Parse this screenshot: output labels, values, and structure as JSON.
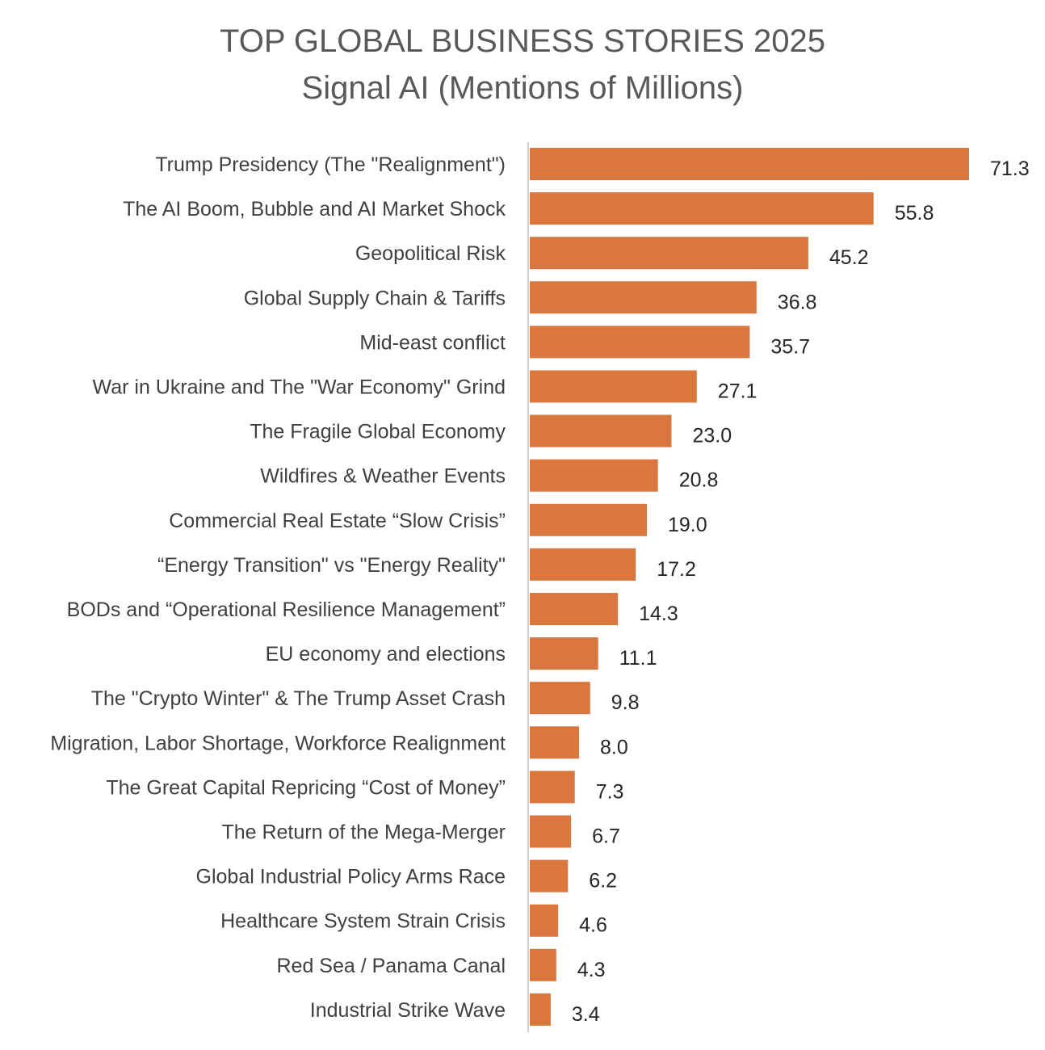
{
  "chart_data": {
    "type": "bar",
    "orientation": "horizontal",
    "title": "TOP GLOBAL BUSINESS STORIES 2025",
    "subtitle": "Signal AI (Mentions of Millions)",
    "categories": [
      "Trump Presidency (The \"Realignment\")",
      "The AI Boom, Bubble and  AI Market Shock",
      "Geopolitical Risk",
      "Global Supply Chain & Tariffs",
      "Mid-east conflict",
      "War in Ukraine and The \"War Economy\" Grind",
      "The Fragile Global Economy",
      "Wildfires & Weather Events",
      "Commercial Real Estate “Slow Crisis”",
      "“Energy Transition\"  vs  \"Energy Reality\"",
      "BODs and  “Operational Resilience Management”",
      "EU economy and elections",
      "The \"Crypto Winter\" & The Trump Asset Crash",
      "Migration, Labor Shortage, Workforce Realignment",
      "The Great Capital Repricing  “Cost of Money”",
      "The Return of the Mega-Merger",
      "Global Industrial Policy Arms Race",
      "Healthcare System Strain Crisis",
      "Red Sea / Panama Canal",
      "Industrial Strike Wave"
    ],
    "values": [
      71.3,
      55.8,
      45.2,
      36.8,
      35.7,
      27.1,
      23.0,
      20.8,
      19.0,
      17.2,
      14.3,
      11.1,
      9.8,
      8.0,
      7.3,
      6.7,
      6.2,
      4.6,
      4.3,
      3.4
    ],
    "value_labels": [
      "71.3",
      "55.8",
      "45.2",
      "36.8",
      "35.7",
      "27.1",
      "23.0",
      "20.8",
      "19.0",
      "17.2",
      "14.3",
      "11.1",
      "9.8",
      "8.0",
      "7.3",
      "6.7",
      "6.2",
      "4.6",
      "4.3",
      "3.4"
    ],
    "xlim": [
      0,
      71.3
    ],
    "grid": false,
    "legend": "none",
    "bar_color": "#D9773F",
    "axis_color": "#D0D0D0",
    "label_color": "#404040",
    "value_color": "#262626",
    "title_color": "#595959"
  }
}
